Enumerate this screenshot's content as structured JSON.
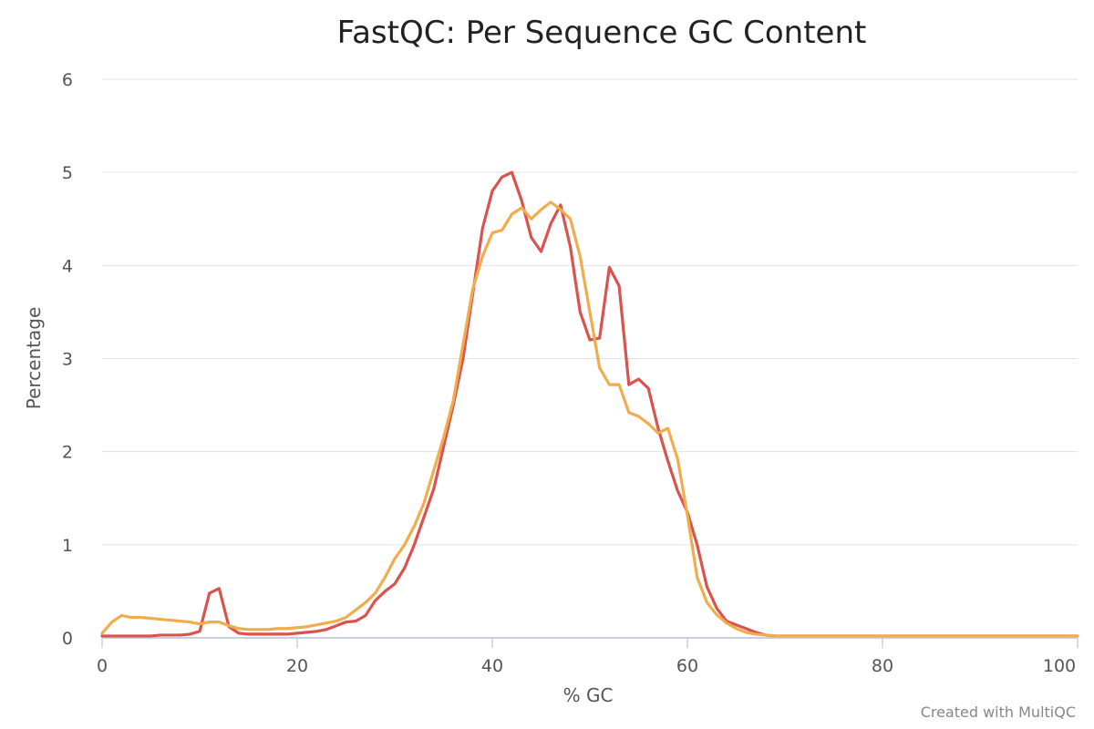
{
  "chart_data": {
    "type": "line",
    "title": "FastQC: Per Sequence GC Content",
    "xlabel": "% GC",
    "ylabel": "Percentage",
    "xlim": [
      0,
      100
    ],
    "ylim": [
      0,
      6
    ],
    "xticks": [
      0,
      20,
      40,
      60,
      80,
      100
    ],
    "yticks": [
      0,
      1,
      2,
      3,
      4,
      5,
      6
    ],
    "grid": true,
    "legend": "none",
    "credit": "Created with MultiQC",
    "series": [
      {
        "color": "#d9534f",
        "x": [
          0,
          1,
          2,
          3,
          4,
          5,
          6,
          7,
          8,
          9,
          10,
          11,
          12,
          13,
          14,
          15,
          16,
          17,
          18,
          19,
          20,
          21,
          22,
          23,
          24,
          25,
          26,
          27,
          28,
          29,
          30,
          31,
          32,
          33,
          34,
          35,
          36,
          37,
          38,
          39,
          40,
          41,
          42,
          43,
          44,
          45,
          46,
          47,
          48,
          49,
          50,
          51,
          52,
          53,
          54,
          55,
          56,
          57,
          58,
          59,
          60,
          61,
          62,
          63,
          64,
          65,
          66,
          67,
          68,
          69,
          70,
          75,
          80,
          85,
          90,
          95,
          100
        ],
        "y": [
          0.02,
          0.02,
          0.02,
          0.02,
          0.02,
          0.02,
          0.03,
          0.03,
          0.03,
          0.04,
          0.07,
          0.48,
          0.53,
          0.12,
          0.05,
          0.04,
          0.04,
          0.04,
          0.04,
          0.04,
          0.05,
          0.06,
          0.07,
          0.09,
          0.13,
          0.17,
          0.18,
          0.24,
          0.4,
          0.5,
          0.58,
          0.75,
          1.0,
          1.3,
          1.6,
          2.05,
          2.5,
          3.0,
          3.7,
          4.4,
          4.8,
          4.95,
          5.0,
          4.7,
          4.3,
          4.15,
          4.45,
          4.65,
          4.2,
          3.5,
          3.2,
          3.22,
          3.98,
          3.78,
          2.72,
          2.78,
          2.68,
          2.25,
          1.9,
          1.58,
          1.35,
          1.0,
          0.55,
          0.32,
          0.18,
          0.14,
          0.1,
          0.06,
          0.03,
          0.02,
          0.02,
          0.02,
          0.02,
          0.02,
          0.02,
          0.02,
          0.02
        ]
      },
      {
        "color": "#f0ad4e",
        "x": [
          0,
          1,
          2,
          3,
          4,
          5,
          6,
          7,
          8,
          9,
          10,
          11,
          12,
          13,
          14,
          15,
          16,
          17,
          18,
          19,
          20,
          21,
          22,
          23,
          24,
          25,
          26,
          27,
          28,
          29,
          30,
          31,
          32,
          33,
          34,
          35,
          36,
          37,
          38,
          39,
          40,
          41,
          42,
          43,
          44,
          45,
          46,
          47,
          48,
          49,
          50,
          51,
          52,
          53,
          54,
          55,
          56,
          57,
          58,
          59,
          60,
          61,
          62,
          63,
          64,
          65,
          66,
          67,
          68,
          69,
          70,
          75,
          80,
          85,
          90,
          95,
          100
        ],
        "y": [
          0.05,
          0.17,
          0.24,
          0.22,
          0.22,
          0.21,
          0.2,
          0.19,
          0.18,
          0.17,
          0.15,
          0.17,
          0.17,
          0.13,
          0.1,
          0.09,
          0.09,
          0.09,
          0.1,
          0.1,
          0.11,
          0.12,
          0.14,
          0.16,
          0.18,
          0.22,
          0.3,
          0.38,
          0.48,
          0.65,
          0.85,
          1.0,
          1.2,
          1.45,
          1.8,
          2.15,
          2.55,
          3.15,
          3.75,
          4.1,
          4.35,
          4.38,
          4.55,
          4.62,
          4.5,
          4.6,
          4.68,
          4.6,
          4.5,
          4.1,
          3.5,
          2.9,
          2.72,
          2.72,
          2.42,
          2.38,
          2.3,
          2.2,
          2.25,
          1.92,
          1.32,
          0.65,
          0.38,
          0.25,
          0.16,
          0.1,
          0.06,
          0.04,
          0.03,
          0.02,
          0.02,
          0.02,
          0.02,
          0.02,
          0.02,
          0.02,
          0.02
        ]
      }
    ]
  }
}
